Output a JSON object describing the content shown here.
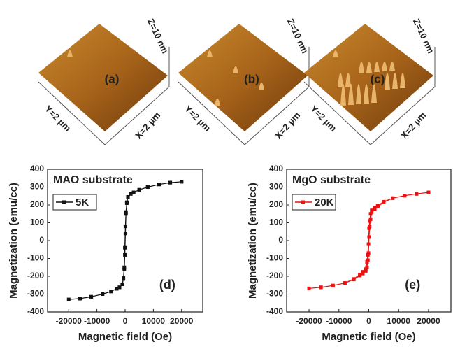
{
  "afm_images": [
    {
      "label": "(a)",
      "z": "Z=10 nm",
      "y": "Y=2 µm",
      "x": "X=2 µm"
    },
    {
      "label": "(b)",
      "z": "Z=10 nm",
      "y": "Y=2 µm",
      "x": "X=2 µm"
    },
    {
      "label": "(c)",
      "z": "Z=10 nm",
      "y": "Y=2 µm",
      "x": "X=2 µm"
    }
  ],
  "chart_data": [
    {
      "type": "line",
      "xlabel": "Magnetic field (Oe)",
      "ylabel": "Magnetization (emu/cc)",
      "annotations": [
        "MAO substrate",
        "(d)"
      ],
      "xlim": [
        -27500,
        27500
      ],
      "xticks": [
        -20000,
        -10000,
        0,
        10000,
        20000
      ],
      "ylim": [
        -400,
        400
      ],
      "yticks": [
        -400,
        -300,
        -200,
        -100,
        0,
        100,
        200,
        300,
        400
      ],
      "legend": "upper left",
      "series": [
        {
          "name": "5K",
          "color": "#111111",
          "x": [
            20000,
            16000,
            12000,
            8000,
            5000,
            3000,
            2000,
            1000,
            600,
            300,
            100,
            -100,
            -300,
            -600,
            -1000,
            -2000,
            -3000,
            -5000,
            -8000,
            -12000,
            -16000,
            -20000,
            -16000,
            -12000,
            -8000,
            -5000,
            -3000,
            -2000,
            -1000,
            -600,
            -300,
            -100,
            100,
            300,
            600,
            1000,
            2000,
            3000,
            5000,
            8000,
            12000,
            16000,
            20000
          ],
          "values": [
            330,
            325,
            315,
            300,
            285,
            270,
            262,
            245,
            215,
            160,
            80,
            -40,
            -150,
            -210,
            -245,
            -262,
            -270,
            -285,
            -300,
            -315,
            -325,
            -330,
            -325,
            -315,
            -300,
            -285,
            -270,
            -262,
            -245,
            -215,
            -160,
            -80,
            40,
            150,
            210,
            245,
            262,
            270,
            285,
            300,
            315,
            325,
            330
          ]
        }
      ]
    },
    {
      "type": "line",
      "xlabel": "Magnetic field (Oe)",
      "ylabel": "Magnetization (emu/cc)",
      "annotations": [
        "MgO substrate",
        "(e)"
      ],
      "xlim": [
        -27500,
        27500
      ],
      "xticks": [
        -20000,
        -10000,
        0,
        10000,
        20000
      ],
      "ylim": [
        -400,
        400
      ],
      "yticks": [
        -400,
        -300,
        -200,
        -100,
        0,
        100,
        200,
        300,
        400
      ],
      "legend": "upper left",
      "series": [
        {
          "name": "20K",
          "color": "#ee1111",
          "x": [
            20000,
            16000,
            12000,
            8000,
            5000,
            3000,
            2000,
            1000,
            600,
            300,
            100,
            -100,
            -300,
            -600,
            -1000,
            -2000,
            -3000,
            -5000,
            -8000,
            -12000,
            -16000,
            -20000,
            -16000,
            -12000,
            -8000,
            -5000,
            -3000,
            -2000,
            -1000,
            -600,
            -300,
            -100,
            100,
            300,
            600,
            1000,
            2000,
            3000,
            5000,
            8000,
            12000,
            16000,
            20000
          ],
          "values": [
            270,
            262,
            252,
            238,
            218,
            196,
            185,
            170,
            150,
            110,
            70,
            -20,
            -80,
            -120,
            -160,
            -175,
            -190,
            -215,
            -238,
            -252,
            -262,
            -268,
            -262,
            -252,
            -238,
            -218,
            -196,
            -185,
            -170,
            -150,
            -110,
            -70,
            20,
            80,
            120,
            160,
            175,
            190,
            215,
            238,
            252,
            262,
            270
          ]
        }
      ]
    }
  ]
}
